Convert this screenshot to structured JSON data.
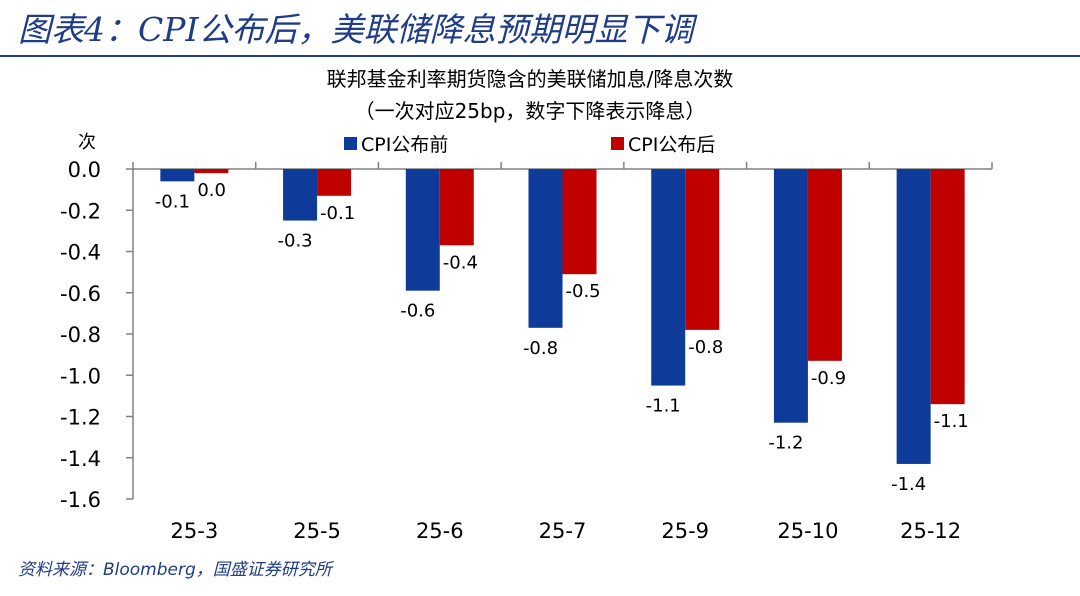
{
  "figure": {
    "title": "图表4：CPI公布后，美联储降息预期明显下调",
    "source": "资料来源：Bloomberg，国盛证券研究所"
  },
  "colors": {
    "series_before": "#0e3b9a",
    "series_after": "#c00000",
    "axis": "#808080",
    "title": "#1f3c88"
  },
  "chart_data": {
    "type": "bar",
    "title": "联邦基金利率期货隐含的美联储加息/降息次数",
    "subtitle": "（一次对应25bp，数字下降表示降息）",
    "ylabel": "次",
    "xlabel": "",
    "categories": [
      "25-3",
      "25-5",
      "25-6",
      "25-7",
      "25-9",
      "25-10",
      "25-12"
    ],
    "series": [
      {
        "name": "CPI公布前",
        "values": [
          -0.06,
          -0.25,
          -0.59,
          -0.77,
          -1.05,
          -1.23,
          -1.43
        ],
        "labels": [
          "-0.1",
          "-0.3",
          "-0.6",
          "-0.8",
          "-1.1",
          "-1.2",
          "-1.4"
        ]
      },
      {
        "name": "CPI公布后",
        "values": [
          -0.02,
          -0.13,
          -0.37,
          -0.51,
          -0.78,
          -0.93,
          -1.14
        ],
        "labels": [
          "0.0",
          "-0.1",
          "-0.4",
          "-0.5",
          "-0.8",
          "-0.9",
          "-1.1"
        ]
      }
    ],
    "yticks": [
      "0.0",
      "-0.2",
      "-0.4",
      "-0.6",
      "-0.8",
      "-1.0",
      "-1.2",
      "-1.4",
      "-1.6"
    ],
    "ylim": [
      -1.6,
      0
    ],
    "legend_position": "top",
    "grid": false
  }
}
